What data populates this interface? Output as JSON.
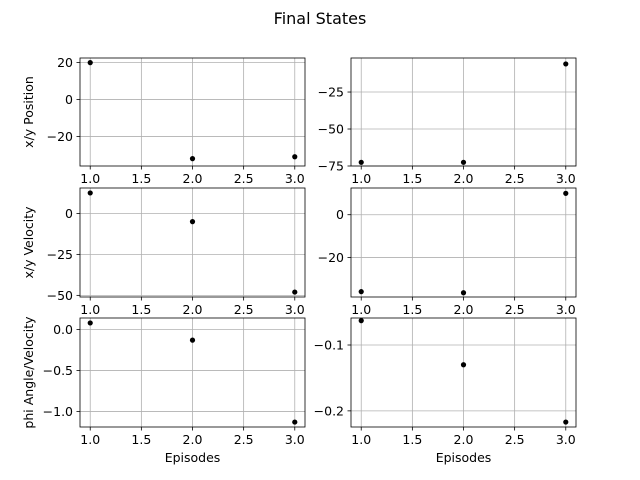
{
  "figure": {
    "suptitle": "Final States"
  },
  "chart_data": [
    {
      "type": "scatter",
      "title": "",
      "xlabel": "",
      "ylabel": "x/y Position",
      "x": [
        1,
        2,
        3
      ],
      "y": [
        20,
        -32,
        -31
      ],
      "xlim": [
        0.9,
        3.1
      ],
      "ylim": [
        -36,
        22.5
      ],
      "xticks": [
        1.0,
        1.5,
        2.0,
        2.5,
        3.0
      ],
      "yticks": [
        20,
        0,
        -20
      ],
      "grid": true,
      "marker_color": "#000000"
    },
    {
      "type": "scatter",
      "title": "",
      "xlabel": "",
      "ylabel": "",
      "x": [
        1,
        2,
        3
      ],
      "y": [
        -72.5,
        -72.5,
        -6
      ],
      "xlim": [
        0.9,
        3.1
      ],
      "ylim": [
        -75,
        -2
      ],
      "xticks": [
        1.0,
        1.5,
        2.0,
        2.5,
        3.0
      ],
      "yticks": [
        -25,
        -50,
        -75
      ],
      "grid": true,
      "marker_color": "#000000"
    },
    {
      "type": "scatter",
      "title": "",
      "xlabel": "",
      "ylabel": "x/y Velocity",
      "x": [
        1,
        2,
        3
      ],
      "y": [
        12.5,
        -5,
        -48
      ],
      "xlim": [
        0.9,
        3.1
      ],
      "ylim": [
        -51,
        15.5
      ],
      "xticks": [
        1.0,
        1.5,
        2.0,
        2.5,
        3.0
      ],
      "yticks": [
        0,
        -25,
        -50
      ],
      "grid": true,
      "marker_color": "#000000"
    },
    {
      "type": "scatter",
      "title": "",
      "xlabel": "",
      "ylabel": "",
      "x": [
        1,
        2,
        3
      ],
      "y": [
        -36,
        -36.5,
        10
      ],
      "xlim": [
        0.9,
        3.1
      ],
      "ylim": [
        -38.5,
        12.5
      ],
      "xticks": [
        1.0,
        1.5,
        2.0,
        2.5,
        3.0
      ],
      "yticks": [
        0,
        -20
      ],
      "grid": true,
      "marker_color": "#000000"
    },
    {
      "type": "scatter",
      "title": "",
      "xlabel": "Episodes",
      "ylabel": "phi Angle/Velocity",
      "x": [
        1,
        2,
        3
      ],
      "y": [
        0.08,
        -0.13,
        -1.13
      ],
      "xlim": [
        0.9,
        3.1
      ],
      "ylim": [
        -1.19,
        0.14
      ],
      "xticks": [
        1.0,
        1.5,
        2.0,
        2.5,
        3.0
      ],
      "yticks": [
        0.0,
        -0.5,
        -1.0
      ],
      "grid": true,
      "marker_color": "#000000"
    },
    {
      "type": "scatter",
      "title": "",
      "xlabel": "Episodes",
      "ylabel": "",
      "x": [
        1,
        2,
        3
      ],
      "y": [
        -0.063,
        -0.13,
        -0.217
      ],
      "xlim": [
        0.9,
        3.1
      ],
      "ylim": [
        -0.2245,
        -0.059
      ],
      "xticks": [
        1.0,
        1.5,
        2.0,
        2.5,
        3.0
      ],
      "yticks": [
        -0.1,
        -0.2
      ],
      "grid": true,
      "marker_color": "#000000"
    }
  ]
}
